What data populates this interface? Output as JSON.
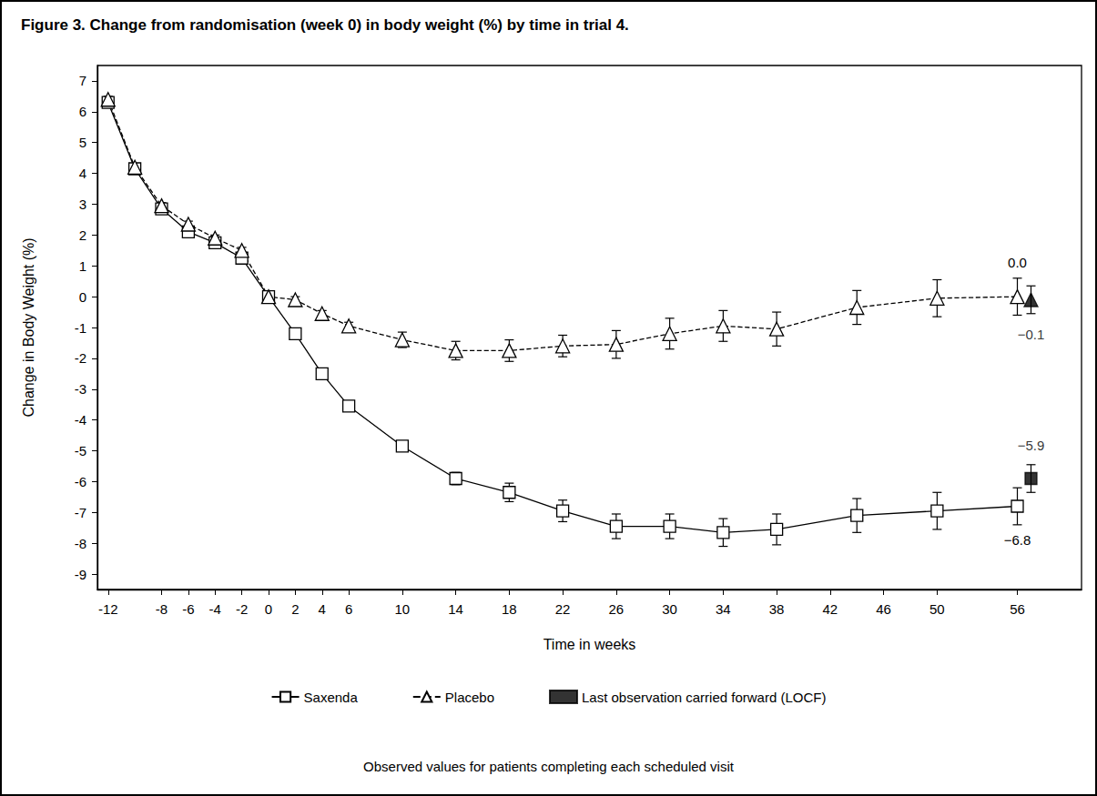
{
  "chart_data": {
    "type": "line",
    "title": "Figure 3. Change from randomisation (week 0) in body weight (%) by time in trial 4.",
    "x_label": "Time in weeks",
    "y_label": "Change in Body Weight (%)",
    "footnote": "Observed values for patients completing each scheduled visit",
    "xlim": [
      -12.8,
      60.8
    ],
    "xticks": [
      -12,
      -8,
      -6,
      -4,
      -2,
      0,
      2,
      4,
      6,
      10,
      14,
      18,
      22,
      26,
      30,
      34,
      38,
      42,
      46,
      50,
      56
    ],
    "ylim": [
      -9.5,
      7.5
    ],
    "yticks": [
      -9,
      -8,
      -7,
      -6,
      -5,
      -4,
      -3,
      -2,
      -1,
      0,
      1,
      2,
      3,
      4,
      5,
      6,
      7
    ],
    "grid": false,
    "legend": "bottom",
    "series": [
      {
        "name": "Saxenda",
        "type": "line",
        "color": "#000000",
        "marker": "square",
        "line_style": "solid",
        "x": [
          -12,
          -10,
          -8,
          -6,
          -4,
          -2,
          0,
          2,
          4,
          6,
          10,
          14,
          18,
          22,
          26,
          30,
          34,
          38,
          44,
          50,
          56
        ],
        "values": [
          6.3,
          4.15,
          2.85,
          2.1,
          1.75,
          1.25,
          0,
          -1.2,
          -2.5,
          -3.55,
          -4.85,
          -5.9,
          -6.35,
          -6.95,
          -7.45,
          -7.45,
          -7.65,
          -7.55,
          -7.1,
          -6.95,
          -6.8
        ],
        "errors": [
          0.1,
          0.1,
          0.1,
          0.1,
          0.1,
          0.1,
          0.05,
          0.1,
          0.1,
          0.12,
          0.15,
          0.2,
          0.3,
          0.35,
          0.4,
          0.4,
          0.45,
          0.5,
          0.55,
          0.6,
          0.6
        ],
        "value_labels": [
          null,
          null,
          null,
          null,
          null,
          null,
          null,
          null,
          null,
          null,
          null,
          null,
          null,
          null,
          null,
          null,
          null,
          null,
          null,
          null,
          "−6.8"
        ]
      },
      {
        "name": "Placebo",
        "type": "line",
        "color": "#000000",
        "marker": "triangle",
        "line_style": "dashed",
        "x": [
          -12,
          -10,
          -8,
          -6,
          -4,
          -2,
          0,
          2,
          4,
          6,
          10,
          14,
          18,
          22,
          26,
          30,
          34,
          38,
          44,
          50,
          56
        ],
        "values": [
          6.4,
          4.2,
          2.95,
          2.35,
          1.9,
          1.5,
          0,
          -0.1,
          -0.55,
          -0.95,
          -1.4,
          -1.75,
          -1.75,
          -1.6,
          -1.55,
          -1.2,
          -0.95,
          -1.05,
          -0.35,
          -0.05,
          0.0
        ],
        "errors": [
          0.1,
          0.1,
          0.1,
          0.1,
          0.1,
          0.1,
          0.05,
          0.1,
          0.1,
          0.12,
          0.25,
          0.3,
          0.35,
          0.35,
          0.45,
          0.5,
          0.5,
          0.55,
          0.55,
          0.6,
          0.6
        ],
        "value_labels": [
          null,
          null,
          null,
          null,
          null,
          null,
          null,
          null,
          null,
          null,
          null,
          null,
          null,
          null,
          null,
          null,
          null,
          null,
          null,
          null,
          "0.0"
        ]
      },
      {
        "name": "Last observation carried forward (LOCF)",
        "type": "scatter",
        "color": "#000000",
        "marker": "square_filled",
        "x": [
          56
        ],
        "values": [
          -5.9
        ],
        "errors": [
          0.45
        ],
        "value_labels": [
          "−5.9"
        ]
      },
      {
        "name": "Last observation carried forward (LOCF)",
        "type": "scatter",
        "color": "#000000",
        "marker": "triangle_filled",
        "x": [
          56
        ],
        "values": [
          -0.1
        ],
        "errors": [
          0.45
        ],
        "value_labels": [
          "−0.1"
        ]
      }
    ]
  }
}
